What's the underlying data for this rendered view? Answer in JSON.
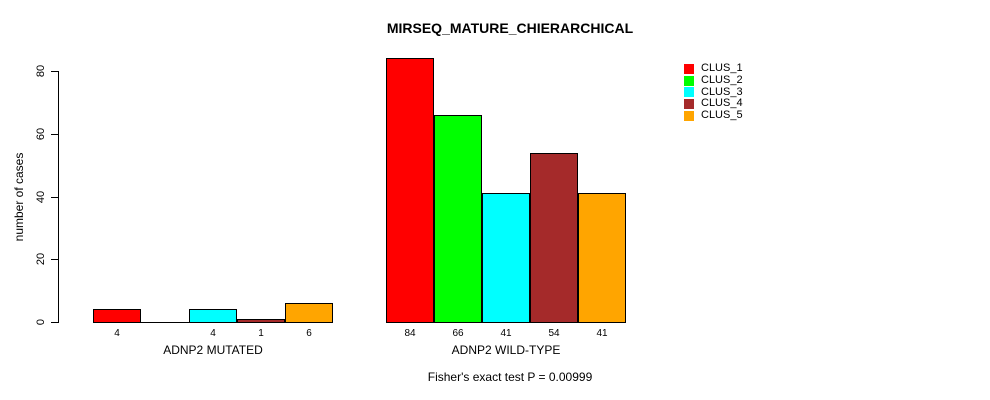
{
  "chart_data": {
    "type": "bar",
    "title": "MIRSEQ_MATURE_CHIERARCHICAL",
    "ylabel": "number of cases",
    "xlabel": "",
    "annotation": "Fisher's exact test P = 0.00999",
    "yticks": [
      0,
      20,
      40,
      60,
      80
    ],
    "ylim": [
      0,
      84
    ],
    "grid": false,
    "legend_position": "top-right",
    "categories": [
      "ADNP2 MUTATED",
      "ADNP2 WILD-TYPE"
    ],
    "series": [
      {
        "name": "CLUS_1",
        "color": "#ff0000",
        "values": [
          4,
          84
        ]
      },
      {
        "name": "CLUS_2",
        "color": "#00ff00",
        "values": [
          0,
          66
        ]
      },
      {
        "name": "CLUS_3",
        "color": "#00ffff",
        "values": [
          4,
          41
        ]
      },
      {
        "name": "CLUS_4",
        "color": "#a52a2a",
        "values": [
          1,
          54
        ]
      },
      {
        "name": "CLUS_5",
        "color": "#ffa500",
        "values": [
          6,
          41
        ]
      }
    ],
    "bar_labels": [
      [
        "4",
        "",
        "4",
        "1",
        "6"
      ],
      [
        "84",
        "66",
        "41",
        "54",
        "41"
      ]
    ]
  }
}
